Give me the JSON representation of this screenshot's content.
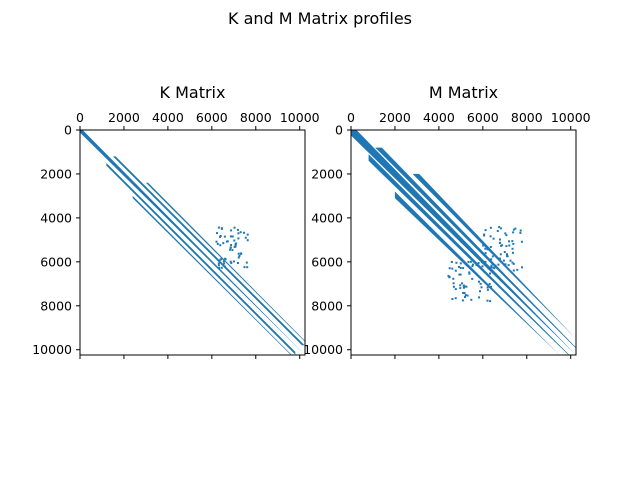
{
  "title": "K and M Matrix profiles",
  "chart_data": [
    {
      "type": "heatmap",
      "title": "K Matrix",
      "xlabel": "",
      "ylabel": "",
      "xlim": [
        0,
        10240
      ],
      "ylim": [
        10240,
        0
      ],
      "xticks": [
        0,
        2000,
        4000,
        6000,
        8000,
        10000
      ],
      "yticks": [
        0,
        2000,
        4000,
        6000,
        8000,
        10000
      ],
      "xtick_labels": [
        "0",
        "2000",
        "4000",
        "6000",
        "8000",
        "10000"
      ],
      "ytick_labels": [
        "0",
        "2000",
        "4000",
        "6000",
        "8000",
        "10000"
      ],
      "x_axis_position": "top",
      "color": "#1f77b4",
      "nonzero_bands": [
        {
          "offset_start": 0,
          "offset_end": 120,
          "row_start": 0,
          "row_end": 10240
        },
        {
          "offset_start": 300,
          "offset_end": 420,
          "row_start": 1200,
          "row_end": 9800
        },
        {
          "offset_start": 600,
          "offset_end": 700,
          "row_start": 2400,
          "row_end": 9600
        }
      ],
      "nonzero_clusters": [
        {
          "row_start": 4400,
          "row_end": 6300,
          "col_start": 6200,
          "col_end": 7700
        }
      ]
    },
    {
      "type": "heatmap",
      "title": "M Matrix",
      "xlabel": "",
      "ylabel": "",
      "xlim": [
        0,
        10240
      ],
      "ylim": [
        10240,
        0
      ],
      "xticks": [
        0,
        2000,
        4000,
        6000,
        8000,
        10000
      ],
      "yticks": [
        0,
        2000,
        4000,
        6000,
        8000,
        10000
      ],
      "xtick_labels": [
        "0",
        "2000",
        "4000",
        "6000",
        "8000",
        "10000"
      ],
      "ytick_labels": [
        "0",
        "2000",
        "4000",
        "6000",
        "8000",
        "10000"
      ],
      "x_axis_position": "top",
      "color": "#1f77b4",
      "symmetric": true,
      "nonzero_bands": [
        {
          "offset_start": 0,
          "offset_end": 250,
          "row_start": 0,
          "row_end": 10240
        },
        {
          "offset_start": 300,
          "offset_end": 600,
          "row_start": 800,
          "row_end": 9900
        },
        {
          "offset_start": 800,
          "offset_end": 1100,
          "row_start": 2000,
          "row_end": 9500
        }
      ],
      "nonzero_clusters": [
        {
          "row_start": 4400,
          "row_end": 6400,
          "col_start": 6000,
          "col_end": 7800
        },
        {
          "row_start": 6000,
          "row_end": 7800,
          "col_start": 4400,
          "col_end": 6400
        }
      ]
    }
  ]
}
